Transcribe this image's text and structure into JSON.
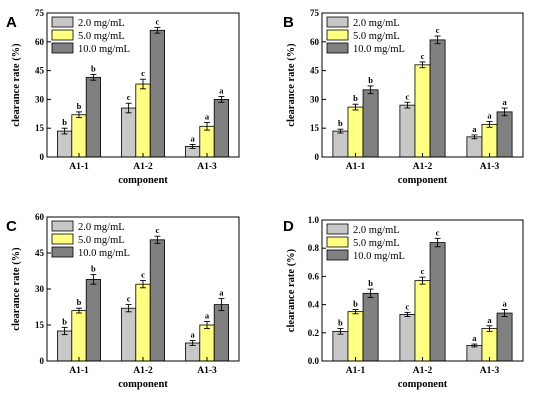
{
  "colors": {
    "s1": "#c8c8c8",
    "s2": "#ffff80",
    "s3": "#808080",
    "axis": "#000000"
  },
  "chart_data": [
    {
      "type": "bar",
      "panel": "A",
      "categories": [
        "A1-1",
        "A1-2",
        "A1-3"
      ],
      "xlabel": "component",
      "ylabel": "clearance rate  (%)",
      "ylim": [
        0,
        75
      ],
      "yticks": [
        0,
        15,
        30,
        45,
        60,
        75
      ],
      "legend_position": "top-left",
      "series": [
        {
          "name": "2.0 mg/mL",
          "values": [
            13.5,
            25.5,
            5.5
          ],
          "errors": [
            1.5,
            2.5,
            1.0
          ],
          "labels": [
            "b",
            "c",
            "a"
          ]
        },
        {
          "name": "5.0 mg/mL",
          "values": [
            22.0,
            38.0,
            16.0
          ],
          "errors": [
            1.5,
            2.5,
            2.0
          ],
          "labels": [
            "b",
            "c",
            "a"
          ]
        },
        {
          "name": "10.0 mg/mL",
          "values": [
            41.5,
            66.0,
            30.0
          ],
          "errors": [
            1.5,
            1.5,
            1.5
          ],
          "labels": [
            "b",
            "c",
            "a"
          ]
        }
      ]
    },
    {
      "type": "bar",
      "panel": "B",
      "categories": [
        "A1-1",
        "A1-2",
        "A1-3"
      ],
      "xlabel": "component",
      "ylabel": "clearance rate  (%)",
      "ylim": [
        0,
        75
      ],
      "yticks": [
        0,
        15,
        30,
        45,
        60,
        75
      ],
      "legend_position": "top-left",
      "series": [
        {
          "name": "2.0 mg/mL",
          "values": [
            13.5,
            27.0,
            10.5
          ],
          "errors": [
            1.0,
            1.5,
            1.0
          ],
          "labels": [
            "b",
            "c",
            "a"
          ]
        },
        {
          "name": "5.0 mg/mL",
          "values": [
            26.0,
            48.0,
            17.0
          ],
          "errors": [
            1.5,
            1.5,
            1.5
          ],
          "labels": [
            "b",
            "c",
            "a"
          ]
        },
        {
          "name": "10.0 mg/mL",
          "values": [
            35.0,
            61.0,
            23.5
          ],
          "errors": [
            2.0,
            2.0,
            2.0
          ],
          "labels": [
            "b",
            "c",
            "a"
          ]
        }
      ]
    },
    {
      "type": "bar",
      "panel": "C",
      "categories": [
        "A1-1",
        "A1-2",
        "A1-3"
      ],
      "xlabel": "component",
      "ylabel": "clearance rate  (%)",
      "ylim": [
        0,
        60
      ],
      "yticks": [
        0,
        15,
        30,
        45,
        60
      ],
      "legend_position": "top-left",
      "series": [
        {
          "name": "2.0 mg/mL",
          "values": [
            12.5,
            22.0,
            7.5
          ],
          "errors": [
            1.5,
            1.5,
            1.0
          ],
          "labels": [
            "b",
            "c",
            "a"
          ]
        },
        {
          "name": "5.0 mg/mL",
          "values": [
            21.0,
            32.0,
            15.0
          ],
          "errors": [
            1.0,
            1.5,
            1.5
          ],
          "labels": [
            "b",
            "c",
            "a"
          ]
        },
        {
          "name": "10.0 mg/mL",
          "values": [
            34.0,
            50.5,
            23.5
          ],
          "errors": [
            2.0,
            1.5,
            2.5
          ],
          "labels": [
            "b",
            "c",
            "a"
          ]
        }
      ]
    },
    {
      "type": "bar",
      "panel": "D",
      "categories": [
        "A1-1",
        "A1-2",
        "A1-3"
      ],
      "xlabel": "component",
      "ylabel": "clearance rate  (%)",
      "ylim": [
        0,
        1.0
      ],
      "yticks": [
        "0.0",
        "0.2",
        "0.4",
        "0.6",
        "0.8",
        "1.0"
      ],
      "legend_position": "top-left",
      "series": [
        {
          "name": "2.0 mg/mL",
          "values": [
            0.21,
            0.33,
            0.11
          ],
          "errors": [
            0.02,
            0.015,
            0.01
          ],
          "labels": [
            "b",
            "c",
            "a"
          ]
        },
        {
          "name": "5.0 mg/mL",
          "values": [
            0.35,
            0.57,
            0.23
          ],
          "errors": [
            0.015,
            0.025,
            0.02
          ],
          "labels": [
            "b",
            "c",
            "a"
          ]
        },
        {
          "name": "10.0 mg/mL",
          "values": [
            0.48,
            0.84,
            0.34
          ],
          "errors": [
            0.03,
            0.03,
            0.025
          ],
          "labels": [
            "b",
            "c",
            "a"
          ]
        }
      ]
    }
  ]
}
